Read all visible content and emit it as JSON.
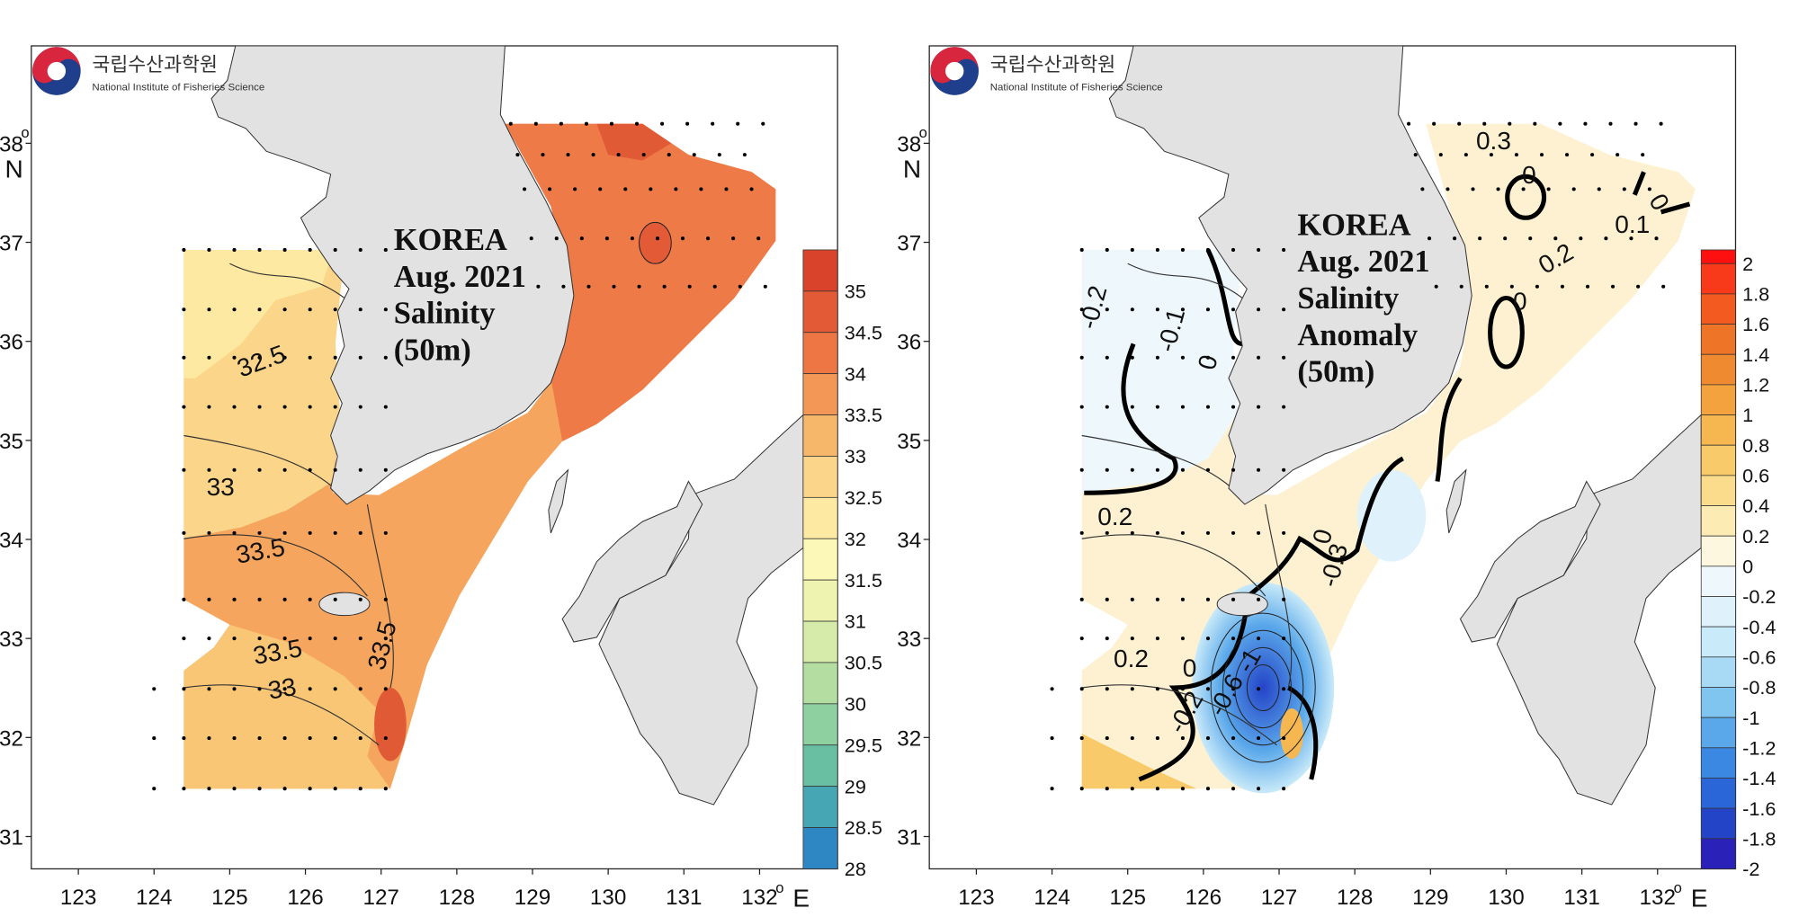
{
  "maps": [
    {
      "logo": {
        "name": "국립수산과학원",
        "subtitle": "National Institute of Fisheries Science"
      },
      "title_lines": [
        "KOREA",
        "Aug. 2021",
        "Salinity",
        "(50m)"
      ],
      "degree": "o",
      "lat_unit": "N",
      "lon_unit": "E",
      "lat_ticks": [
        "38",
        "37",
        "36",
        "35",
        "34",
        "33",
        "32",
        "31"
      ],
      "lon_ticks": [
        "123",
        "124",
        "125",
        "126",
        "127",
        "128",
        "129",
        "130",
        "131",
        "132"
      ],
      "colorbar": {
        "labels": [
          "35",
          "34.5",
          "34",
          "33.5",
          "33",
          "32.5",
          "32",
          "31.5",
          "31",
          "30.5",
          "30",
          "29.5",
          "29",
          "28.5",
          "28"
        ],
        "colors": [
          "#d9432b",
          "#e35a36",
          "#ee7645",
          "#f39757",
          "#f7b76b",
          "#fbd589",
          "#fde9a2",
          "#fcf8b8",
          "#eef3b0",
          "#d6eaa9",
          "#b4dda2",
          "#8fd0a1",
          "#69bfa2",
          "#47a6b3",
          "#2e87c2"
        ]
      },
      "contour_labels": [
        "32.5",
        "33",
        "33.5",
        "33.5",
        "33",
        "33.5"
      ]
    },
    {
      "logo": {
        "name": "국립수산과학원",
        "subtitle": "National Institute of Fisheries Science"
      },
      "title_lines": [
        "KOREA",
        "Aug. 2021",
        "Salinity",
        "Anomaly",
        "(50m)"
      ],
      "degree": "o",
      "lat_unit": "N",
      "lon_unit": "E",
      "lat_ticks": [
        "38",
        "37",
        "36",
        "35",
        "34",
        "33",
        "32",
        "31"
      ],
      "lon_ticks": [
        "123",
        "124",
        "125",
        "126",
        "127",
        "128",
        "129",
        "130",
        "131",
        "132"
      ],
      "colorbar": {
        "labels": [
          "2",
          "1.8",
          "1.6",
          "1.4",
          "1.2",
          "1",
          "0.8",
          "0.6",
          "0.4",
          "0.2",
          "0",
          "-0.2",
          "-0.4",
          "-0.6",
          "-0.8",
          "-1",
          "-1.2",
          "-1.4",
          "-1.6",
          "-1.8",
          "-2"
        ],
        "colors": [
          "#ff1010",
          "#f83a1a",
          "#f25a20",
          "#ee7428",
          "#ef8a30",
          "#f3a23e",
          "#f6b650",
          "#f8ca6a",
          "#fbdc8c",
          "#fdebb4",
          "#fef7e0",
          "#eef8fc",
          "#dff2fb",
          "#c9eaf9",
          "#a8daf6",
          "#80c4f0",
          "#5aa8ea",
          "#3a88e2",
          "#2a66d8",
          "#2444c8",
          "#2a22b8"
        ]
      },
      "contour_labels": [
        "-0.2",
        "-0.1",
        "0",
        "0.2",
        "0.2",
        "0",
        "-0.2",
        "-0.6",
        "-1",
        "0.3",
        "0",
        "0.2",
        "0",
        "0",
        "0.1",
        "-0.3",
        "0"
      ]
    }
  ]
}
